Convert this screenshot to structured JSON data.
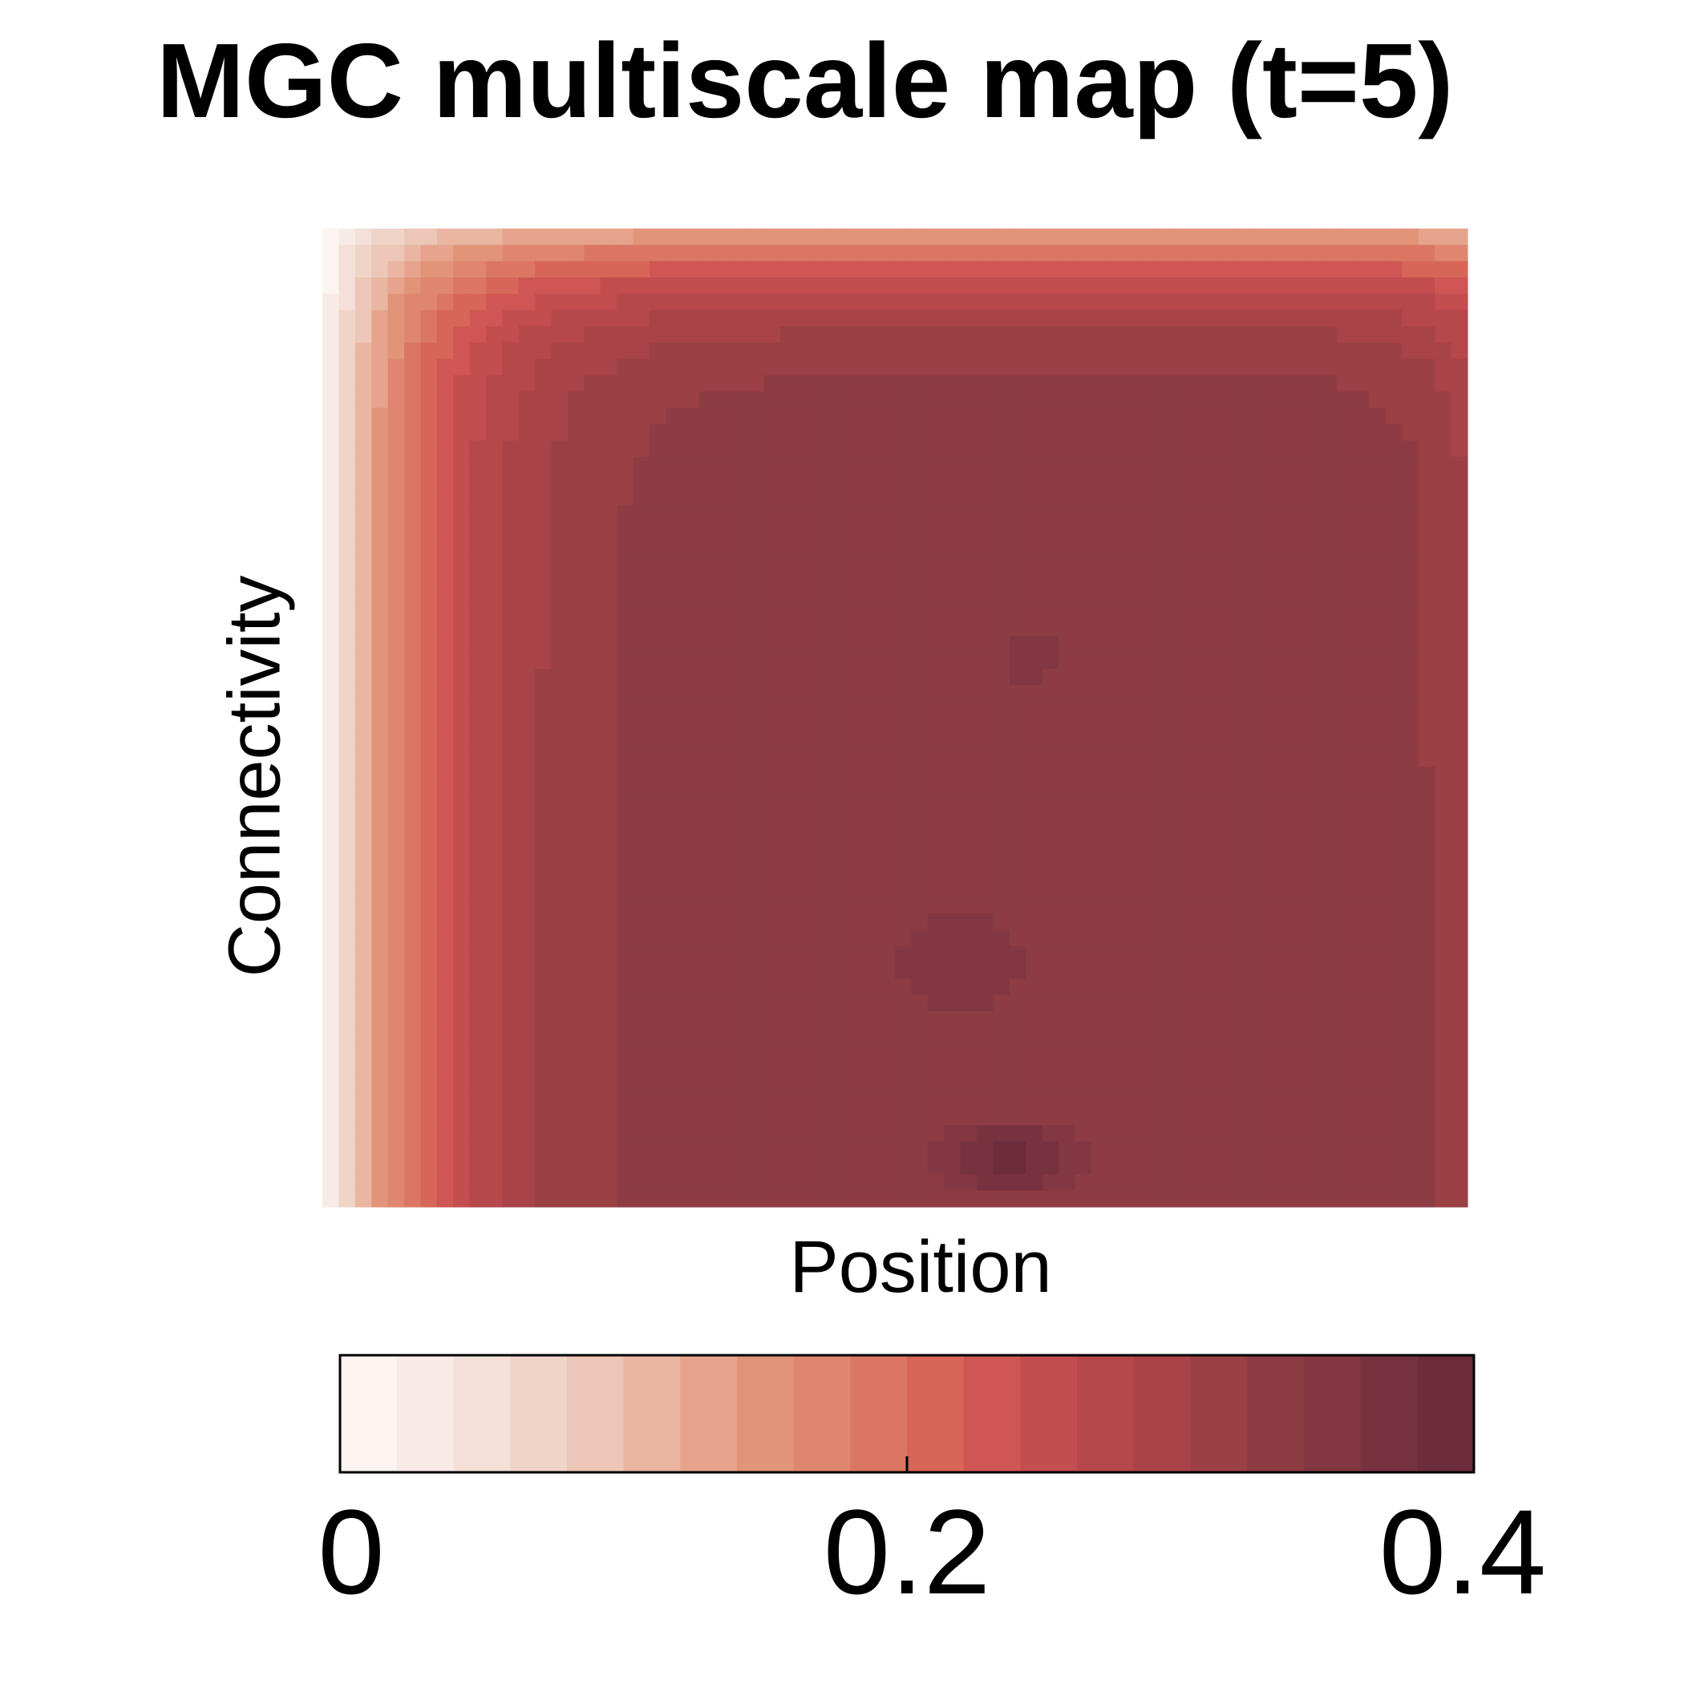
{
  "chart_data": {
    "type": "heatmap",
    "title": "MGC multiscale map (t=5)",
    "xlabel": "Position",
    "ylabel": "Connectivity",
    "x_ticks": [],
    "y_ticks": [],
    "grid": false,
    "value_range": [
      0,
      0.4
    ],
    "colorbar": {
      "orientation": "horizontal",
      "placement": "bottom",
      "ticks": [
        0,
        0.2,
        0.4
      ],
      "tick_labels": [
        "0",
        "0.2",
        "0.4"
      ],
      "levels": 20,
      "colors": [
        "#fcf4f0",
        "#f8ebe6",
        "#f4e0d8",
        "#f0d4c8",
        "#ecc7b8",
        "#eab6a2",
        "#e6a48d",
        "#e29479",
        "#e08670",
        "#dc7664",
        "#d76658",
        "#cf5654",
        "#c34d4f",
        "#b6474b",
        "#a84448",
        "#9b4045",
        "#8d3c44",
        "#823742",
        "#773240",
        "#6c2c3b"
      ]
    },
    "description_of_values": {
      "min_region": "left edge near x=0 (~0.07)",
      "max_region": "bottom center around x=0.6 (~0.38)",
      "secondary_peak": "center-right around x=0.6, y=0.55 (~0.36)"
    },
    "nx": 70,
    "ny": 60,
    "peaks": [
      {
        "x": 0.6,
        "y": 0.05,
        "value": 0.385,
        "sigma_x": 0.14,
        "sigma_y": 0.08
      },
      {
        "x": 0.56,
        "y": 0.25,
        "value": 0.36,
        "sigma_x": 0.16,
        "sigma_y": 0.14
      },
      {
        "x": 0.62,
        "y": 0.56,
        "value": 0.36,
        "sigma_x": 0.07,
        "sigma_y": 0.07
      }
    ]
  }
}
